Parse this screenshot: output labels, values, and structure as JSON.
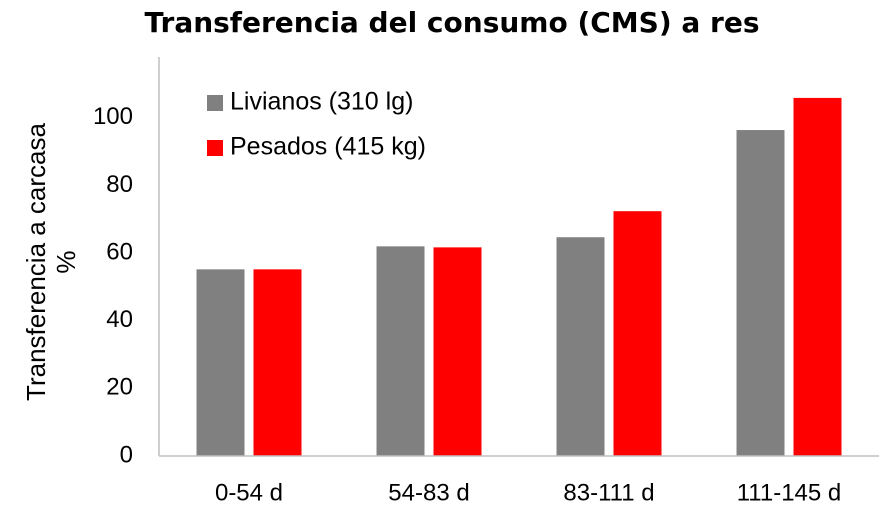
{
  "chart_data": {
    "type": "bar",
    "title": "Transferencia del consumo (CMS) a res",
    "ylabel": [
      "Transferencia a carcasa",
      "%"
    ],
    "categories": [
      "0-54 d",
      "54-83 d",
      "83-111 d",
      "111-145 d"
    ],
    "series": [
      {
        "name": "Livianos (310 lg)",
        "color": "#808080",
        "values": [
          55.2,
          62.0,
          64.7,
          96.4
        ]
      },
      {
        "name": "Pesados (415 kg)",
        "color": "#ff0000",
        "values": [
          55.2,
          61.7,
          72.4,
          105.9
        ]
      }
    ],
    "ylim": [
      0,
      118
    ],
    "yticks": [
      0,
      20,
      40,
      60,
      80,
      100
    ],
    "grid": false,
    "legend": "top-left"
  }
}
